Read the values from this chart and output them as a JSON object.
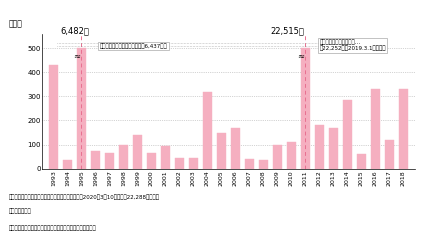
{
  "years": [
    1993,
    1994,
    1995,
    1996,
    1997,
    1998,
    1999,
    2000,
    2001,
    2002,
    2003,
    2004,
    2005,
    2006,
    2007,
    2008,
    2009,
    2010,
    2011,
    2012,
    2013,
    2014,
    2015,
    2016,
    2017,
    2018
  ],
  "values": [
    430,
    35,
    500,
    75,
    65,
    100,
    140,
    65,
    95,
    45,
    45,
    320,
    150,
    170,
    40,
    35,
    100,
    110,
    500,
    180,
    170,
    285,
    60,
    330,
    120,
    330
  ],
  "bar_color": "#f5afc0",
  "peak1_year": 1995,
  "peak1_total": "6,482人",
  "peak1_label": "主な災害：阪神・淡路大震災（6,437人）",
  "peak2_year": 2011,
  "peak2_total": "22,515人",
  "peak2_label_line1": "主な災害：東日本大震災…",
  "peak2_label_line2": "（22,252人（2019.3.1現在））",
  "ylabel": "（人）",
  "yticks": [
    0,
    100,
    200,
    300,
    400,
    500
  ],
  "ylim": [
    0,
    560
  ],
  "note1": "（注）　東日本大震災の死亡者数・行方不明者数は2020年3月10日時点で22,288人となっ",
  "note2": "　　　ている。",
  "source": "資料）　内閣府「令和元年版防災白書」より国土交通省作成",
  "bg_color": "#ffffff"
}
